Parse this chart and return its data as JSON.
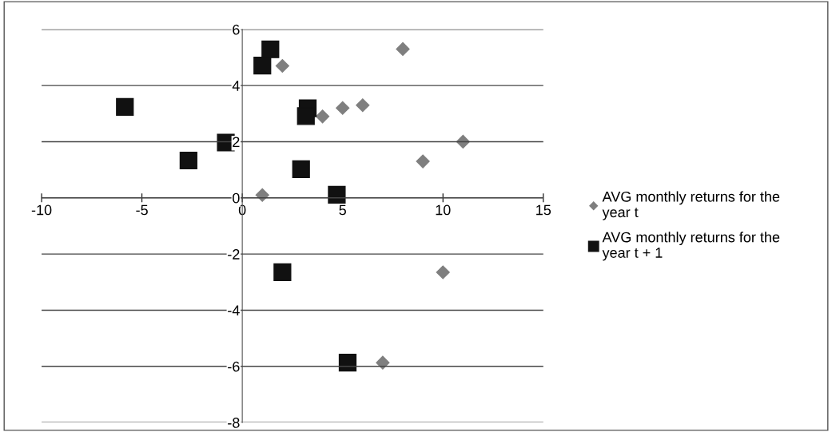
{
  "chart_data": {
    "type": "scatter",
    "series": [
      {
        "name": " AVG monthly returns for the year t",
        "color": "#7f7f7f",
        "marker": "diamond",
        "x": [
          2,
          8,
          4,
          5,
          6,
          11,
          9,
          1,
          10,
          7
        ],
        "values": [
          4.7,
          5.3,
          2.9,
          3.2,
          3.3,
          2.0,
          1.3,
          0.1,
          -2.65,
          -5.87
        ]
      },
      {
        "name": "AVG monthly returns for the year t + 1",
        "color": "#111111",
        "marker": "square",
        "x": [
          1.4,
          1.0,
          -5.85,
          3.26,
          3.17,
          -0.82,
          -2.68,
          2.93,
          4.71,
          2.0,
          5.25
        ],
        "values": [
          5.29,
          4.71,
          3.24,
          3.19,
          2.91,
          1.97,
          1.33,
          1.02,
          0.11,
          -2.65,
          -5.87
        ]
      }
    ],
    "xlim": [
      -10,
      15
    ],
    "xticks": [
      -10,
      -5,
      0,
      5,
      10,
      15
    ],
    "ylim": [
      -8,
      6
    ],
    "yticks": [
      -8,
      -6,
      -4,
      -2,
      0,
      2,
      4,
      6
    ],
    "grid": "y",
    "legend": "right"
  }
}
